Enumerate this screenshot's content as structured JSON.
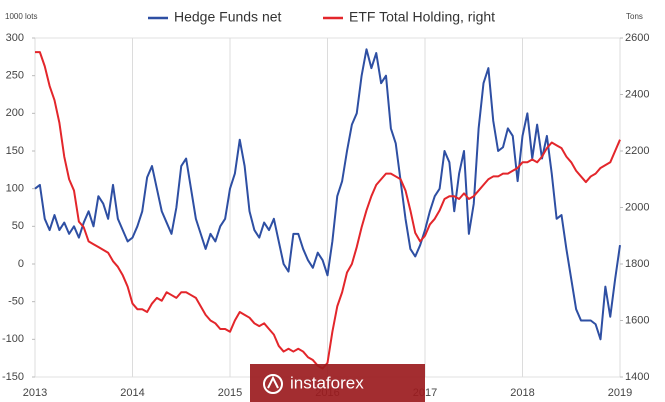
{
  "chart_data": {
    "type": "line",
    "y_unit_label": "1000 lots",
    "y2_unit_label": "Tons",
    "watermark": "instaforex",
    "x": [
      2013,
      2013.05,
      2013.1,
      2013.15,
      2013.2,
      2013.25,
      2013.3,
      2013.35,
      2013.4,
      2013.45,
      2013.5,
      2013.55,
      2013.6,
      2013.65,
      2013.7,
      2013.75,
      2013.8,
      2013.85,
      2013.9,
      2013.95,
      2014,
      2014.05,
      2014.1,
      2014.15,
      2014.2,
      2014.25,
      2014.3,
      2014.35,
      2014.4,
      2014.45,
      2014.5,
      2014.55,
      2014.6,
      2014.65,
      2014.7,
      2014.75,
      2014.8,
      2014.85,
      2014.9,
      2014.95,
      2015,
      2015.05,
      2015.1,
      2015.15,
      2015.2,
      2015.25,
      2015.3,
      2015.35,
      2015.4,
      2015.45,
      2015.5,
      2015.55,
      2015.6,
      2015.65,
      2015.7,
      2015.75,
      2015.8,
      2015.85,
      2015.9,
      2015.95,
      2016,
      2016.05,
      2016.1,
      2016.15,
      2016.2,
      2016.25,
      2016.3,
      2016.35,
      2016.4,
      2016.45,
      2016.5,
      2016.55,
      2016.6,
      2016.65,
      2016.7,
      2016.75,
      2016.8,
      2016.85,
      2016.9,
      2016.95,
      2017,
      2017.05,
      2017.1,
      2017.15,
      2017.2,
      2017.25,
      2017.3,
      2017.35,
      2017.4,
      2017.45,
      2017.5,
      2017.55,
      2017.6,
      2017.65,
      2017.7,
      2017.75,
      2017.8,
      2017.85,
      2017.9,
      2017.95,
      2018,
      2018.05,
      2018.1,
      2018.15,
      2018.2,
      2018.25,
      2018.3,
      2018.35,
      2018.4,
      2018.45,
      2018.5,
      2018.55,
      2018.6,
      2018.65,
      2018.7,
      2018.75,
      2018.8,
      2018.85,
      2018.9,
      2018.95,
      2019
    ],
    "series": [
      {
        "name": "Hedge Funds net",
        "color": "#2e4fa3",
        "values": [
          100,
          105,
          60,
          45,
          65,
          45,
          55,
          40,
          50,
          35,
          55,
          70,
          50,
          90,
          80,
          60,
          105,
          60,
          45,
          30,
          35,
          50,
          70,
          115,
          130,
          100,
          70,
          55,
          40,
          75,
          130,
          140,
          100,
          60,
          40,
          20,
          40,
          30,
          50,
          60,
          100,
          120,
          165,
          130,
          70,
          45,
          35,
          55,
          45,
          60,
          30,
          0,
          -10,
          40,
          40,
          20,
          5,
          -5,
          15,
          5,
          -15,
          30,
          90,
          110,
          150,
          185,
          200,
          250,
          285,
          260,
          280,
          240,
          250,
          180,
          160,
          110,
          60,
          20,
          10,
          25,
          45,
          70,
          90,
          100,
          150,
          135,
          70,
          120,
          150,
          40,
          80,
          180,
          240,
          260,
          190,
          150,
          155,
          180,
          170,
          110,
          170,
          200,
          140,
          185,
          140,
          170,
          120,
          60,
          65,
          20,
          -20,
          -60,
          -75,
          -75,
          -75,
          -80,
          -100,
          -30,
          -70,
          -20,
          25
        ]
      },
      {
        "name": "ETF Total Holding, right",
        "color": "#e3262b",
        "axis": "y2",
        "values": [
          2550,
          2550,
          2500,
          2430,
          2380,
          2300,
          2180,
          2100,
          2060,
          1950,
          1930,
          1880,
          1870,
          1860,
          1850,
          1840,
          1810,
          1790,
          1760,
          1720,
          1660,
          1640,
          1640,
          1630,
          1660,
          1680,
          1670,
          1700,
          1690,
          1680,
          1700,
          1700,
          1690,
          1680,
          1650,
          1620,
          1600,
          1590,
          1570,
          1570,
          1560,
          1600,
          1630,
          1620,
          1610,
          1590,
          1580,
          1590,
          1570,
          1550,
          1510,
          1490,
          1500,
          1490,
          1500,
          1490,
          1470,
          1460,
          1440,
          1430,
          1450,
          1560,
          1650,
          1700,
          1770,
          1800,
          1860,
          1930,
          1990,
          2040,
          2080,
          2100,
          2120,
          2120,
          2110,
          2100,
          2060,
          1990,
          1910,
          1880,
          1900,
          1940,
          1960,
          1990,
          2030,
          2040,
          2040,
          2030,
          2050,
          2030,
          2040,
          2060,
          2080,
          2100,
          2110,
          2110,
          2120,
          2120,
          2130,
          2140,
          2160,
          2160,
          2170,
          2160,
          2180,
          2210,
          2230,
          2220,
          2210,
          2180,
          2160,
          2130,
          2110,
          2090,
          2110,
          2120,
          2140,
          2150,
          2160,
          2200,
          2240
        ]
      }
    ],
    "xlim": [
      2013,
      2019
    ],
    "xticks": [
      2013,
      2014,
      2015,
      2016,
      2017,
      2018,
      2019
    ],
    "ylim": [
      -150,
      300
    ],
    "yticks": [
      -150,
      -100,
      -50,
      0,
      50,
      100,
      150,
      200,
      250,
      300
    ],
    "y2lim": [
      1400,
      2600
    ],
    "y2ticks": [
      1400,
      1600,
      1800,
      2000,
      2200,
      2400,
      2600
    ],
    "xgrid": true,
    "legend": "top"
  }
}
